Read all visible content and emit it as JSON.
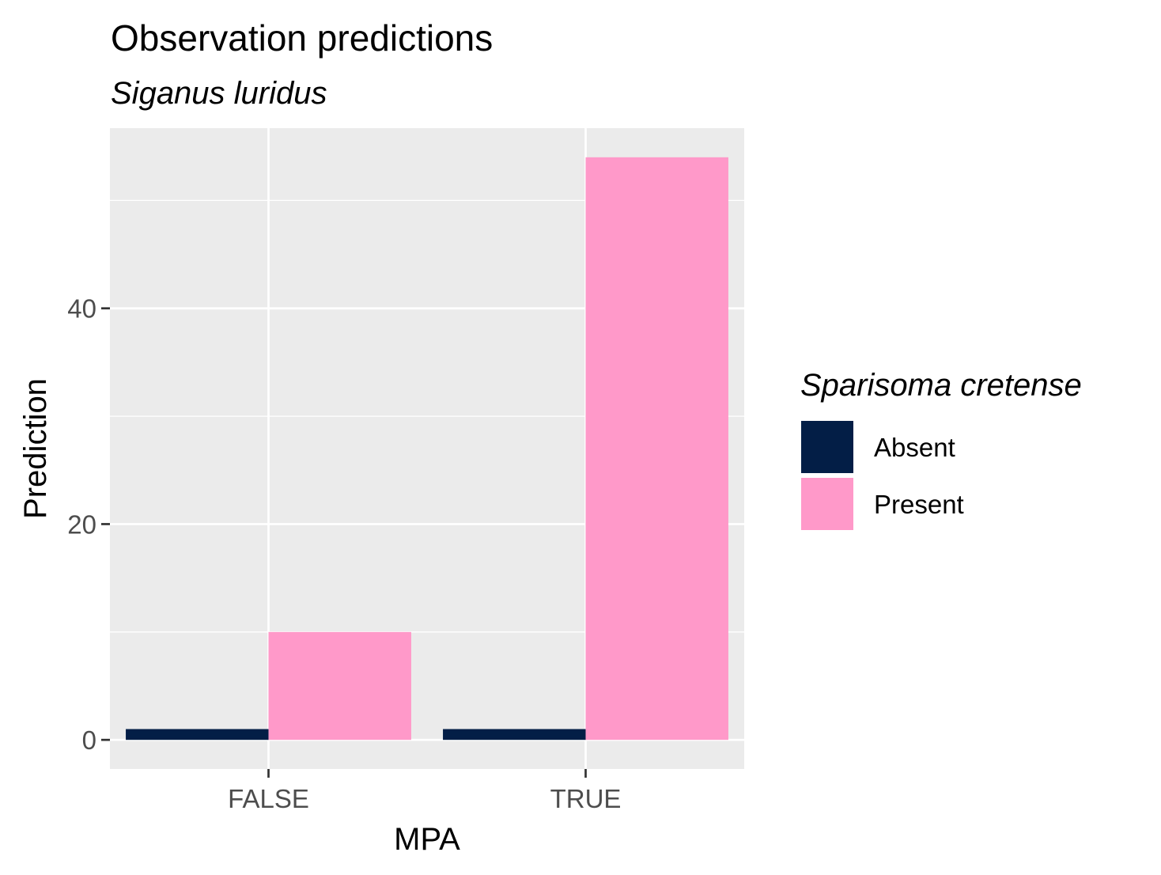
{
  "chart_data": {
    "type": "bar",
    "title": "Observation predictions",
    "subtitle": "Siganus luridus",
    "xlabel": "MPA",
    "ylabel": "Prediction",
    "categories": [
      "FALSE",
      "TRUE"
    ],
    "series": [
      {
        "name": "Absent",
        "color": "#031e46",
        "values": [
          1,
          1
        ]
      },
      {
        "name": "Present",
        "color": "#ff99c9",
        "values": [
          10,
          54
        ]
      }
    ],
    "ylim": [
      -2.7,
      56.7
    ],
    "yticks": [
      0,
      20,
      40
    ],
    "ytick_labels": [
      "0",
      "20",
      "40"
    ],
    "legend": {
      "title": "Sparisoma cretense",
      "position": "right"
    },
    "grid": true,
    "panel_background": "#ebebeb",
    "grid_color": "#ffffff"
  }
}
